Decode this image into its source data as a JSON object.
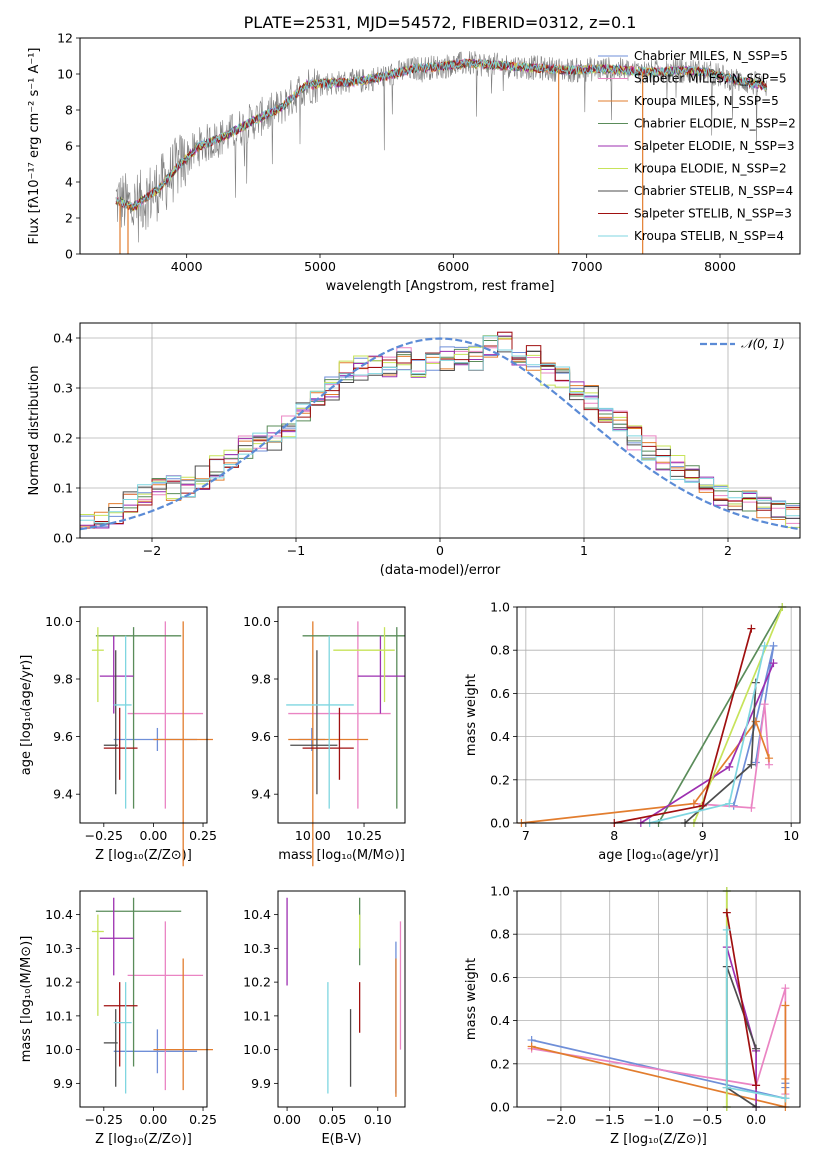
{
  "figure_title": "PLATE=2531, MJD=54572, FIBERID=0312, z=0.1",
  "colors": {
    "Chabrier MILES": "#6f8fd8",
    "Salpeter MILES": "#ea84c3",
    "Kroupa MILES": "#e27d2e",
    "Chabrier ELODIE": "#5a8c5a",
    "Salpeter ELODIE": "#9c2fb0",
    "Kroupa ELODIE": "#c7e35a",
    "Chabrier STELIB": "#4d4d4d",
    "Salpeter STELIB": "#a01010",
    "Kroupa STELIB": "#7fd6e0",
    "data": "#808080",
    "gaussian": "#5b8bd6",
    "grid": "#b0b0b0"
  },
  "chart_data": [
    {
      "type": "line",
      "id": "spectrum",
      "xlabel": "wavelength [Angstrom, rest frame]",
      "ylabel": "Flux [fλ10⁻¹⁷ erg cm⁻² s⁻¹ A⁻¹]",
      "xlim": [
        3200,
        8600
      ],
      "ylim": [
        0,
        12
      ],
      "x_ticks": [
        "4000",
        "5000",
        "6000",
        "7000",
        "8000"
      ],
      "y_ticks": [
        "0",
        "2",
        "4",
        "6",
        "8",
        "10",
        "12"
      ],
      "grid": false,
      "legend_position": "top-right",
      "legend": [
        "Chabrier MILES, N_SSP=5",
        "Salpeter MILES, N_SSP=5",
        "Kroupa MILES, N_SSP=5",
        "Chabrier ELODIE, N_SSP=2",
        "Salpeter ELODIE, N_SSP=3",
        "Kroupa ELODIE, N_SSP=2",
        "Chabrier STELIB, N_SSP=4",
        "Salpeter STELIB, N_SSP=3",
        "Kroupa STELIB, N_SSP=4"
      ],
      "continuum": {
        "x": [
          3470,
          3600,
          3800,
          3950,
          4100,
          4300,
          4500,
          4700,
          4900,
          5100,
          5300,
          5500,
          5700,
          5900,
          6100,
          6300,
          6500,
          6700,
          6900,
          7100,
          7300,
          7500,
          7700,
          7900,
          8100,
          8300,
          8350
        ],
        "y": [
          3.0,
          2.6,
          3.7,
          5.0,
          6.0,
          6.6,
          7.4,
          8.1,
          9.4,
          9.5,
          9.6,
          9.9,
          10.3,
          10.4,
          10.6,
          10.5,
          10.4,
          10.3,
          10.2,
          10.3,
          10.2,
          10.1,
          10.2,
          10.1,
          9.7,
          9.4,
          9.3
        ]
      },
      "spikes": [
        {
          "x": 3500,
          "y": 0,
          "series": "Kroupa MILES"
        },
        {
          "x": 3560,
          "y": 0,
          "series": "Kroupa MILES"
        },
        {
          "x": 6790,
          "y": 0,
          "series": "Kroupa MILES"
        },
        {
          "x": 7420,
          "y": 0,
          "series": "Kroupa MILES"
        }
      ]
    },
    {
      "type": "line",
      "id": "residuals",
      "xlabel": "(data-model)/error",
      "ylabel": "Normed distribution",
      "xlim": [
        -2.5,
        2.5
      ],
      "ylim": [
        0,
        0.43
      ],
      "x_ticks": [
        "−2",
        "−1",
        "0",
        "1",
        "2"
      ],
      "y_ticks": [
        "0.0",
        "0.1",
        "0.2",
        "0.3",
        "0.4"
      ],
      "grid": true,
      "legend_position": "top-right",
      "legend": [
        "𝒩(0, 1)"
      ],
      "bins": [
        -2.5,
        -2.4,
        -2.3,
        -2.2,
        -2.1,
        -2.0,
        -1.9,
        -1.8,
        -1.7,
        -1.6,
        -1.5,
        -1.4,
        -1.3,
        -1.2,
        -1.1,
        -1.0,
        -0.9,
        -0.8,
        -0.7,
        -0.6,
        -0.5,
        -0.4,
        -0.3,
        -0.2,
        -0.1,
        0.0,
        0.1,
        0.2,
        0.3,
        0.4,
        0.5,
        0.6,
        0.7,
        0.8,
        0.9,
        1.0,
        1.1,
        1.2,
        1.3,
        1.4,
        1.5,
        1.6,
        1.7,
        1.8,
        1.9,
        2.0,
        2.1,
        2.2,
        2.3,
        2.4,
        2.5
      ],
      "histogram_base": [
        0.03,
        0.03,
        0.05,
        0.07,
        0.085,
        0.095,
        0.1,
        0.105,
        0.12,
        0.14,
        0.16,
        0.18,
        0.195,
        0.2,
        0.22,
        0.25,
        0.27,
        0.3,
        0.33,
        0.34,
        0.35,
        0.34,
        0.36,
        0.34,
        0.35,
        0.36,
        0.37,
        0.36,
        0.38,
        0.39,
        0.37,
        0.36,
        0.33,
        0.32,
        0.3,
        0.28,
        0.25,
        0.23,
        0.2,
        0.18,
        0.16,
        0.14,
        0.12,
        0.1,
        0.085,
        0.08,
        0.07,
        0.06,
        0.05,
        0.045
      ],
      "gaussian": {
        "mu": 0,
        "sigma": 1
      }
    },
    {
      "type": "scatter",
      "id": "age-Z",
      "xlabel": "Z [log₁₀(Z/Z⊙)]",
      "ylabel": "age  [log₁₀(age/yr)]",
      "xlim": [
        -0.37,
        0.27
      ],
      "ylim": [
        9.3,
        10.05
      ],
      "x_ticks": [
        "−0.25",
        "0.00",
        "0.25"
      ],
      "y_ticks": [
        "9.4",
        "9.6",
        "9.8",
        "10.0"
      ],
      "grid": false
    },
    {
      "type": "scatter",
      "id": "age-mass",
      "xlabel": "mass [log₁₀(M/M⊙)]",
      "ylabel": "",
      "xlim": [
        9.83,
        10.45
      ],
      "ylim": [
        9.3,
        10.05
      ],
      "x_ticks": [
        "10.00",
        "10.25"
      ],
      "y_ticks": [
        "9.4",
        "9.6",
        "9.8",
        "10.0"
      ],
      "grid": false
    },
    {
      "type": "line",
      "id": "massweight-age",
      "xlabel": "age  [log₁₀(age/yr)]",
      "ylabel": "mass weight",
      "xlim": [
        6.9,
        10.1
      ],
      "ylim": [
        0,
        1.0
      ],
      "x_ticks": [
        "7",
        "8",
        "9",
        "10"
      ],
      "y_ticks": [
        "0.0",
        "0.2",
        "0.4",
        "0.6",
        "0.8",
        "1.0"
      ],
      "grid": true
    },
    {
      "type": "scatter",
      "id": "mass-Z",
      "xlabel": "Z [log₁₀(Z/Z⊙)]",
      "ylabel": "mass [log₁₀(M/M⊙)]",
      "xlim": [
        -0.37,
        0.27
      ],
      "ylim": [
        9.83,
        10.47
      ],
      "x_ticks": [
        "−0.25",
        "0.00",
        "0.25"
      ],
      "y_ticks": [
        "9.9",
        "10.0",
        "10.1",
        "10.2",
        "10.3",
        "10.4"
      ],
      "grid": false
    },
    {
      "type": "scatter",
      "id": "mass-EBV",
      "xlabel": "E(B-V)",
      "ylabel": "",
      "xlim": [
        -0.01,
        0.13
      ],
      "ylim": [
        9.83,
        10.47
      ],
      "x_ticks": [
        "0.00",
        "0.05",
        "0.10"
      ],
      "y_ticks": [
        "9.9",
        "10.0",
        "10.1",
        "10.2",
        "10.3",
        "10.4"
      ],
      "grid": false
    },
    {
      "type": "line",
      "id": "massweight-Z",
      "xlabel": "Z [log₁₀(Z/Z⊙)]",
      "ylabel": "mass weight",
      "xlim": [
        -2.45,
        0.45
      ],
      "ylim": [
        0,
        1.0
      ],
      "x_ticks": [
        "−2.0",
        "−1.5",
        "−1.0",
        "−0.5",
        "0.0"
      ],
      "y_ticks": [
        "0.0",
        "0.2",
        "0.4",
        "0.6",
        "0.8",
        "1.0"
      ],
      "grid": true
    }
  ],
  "fits": [
    {
      "name": "Chabrier MILES",
      "age": [
        9.59,
        9.55,
        9.63
      ],
      "Z": [
        0.02,
        -0.2,
        0.22
      ],
      "mass": [
        9.995,
        9.93,
        10.06
      ],
      "ebv": [
        0.12,
        9.87,
        10.32
      ],
      "age_sfh": [
        9.35,
        9.6,
        9.8,
        9.6
      ],
      "age_w": [
        0.08,
        0.47,
        0.82,
        0.28
      ],
      "Z_sfh": [
        -2.3,
        0.3,
        0.3,
        0.3
      ],
      "Z_w": [
        0.31,
        0.04,
        0.11,
        0.09
      ]
    },
    {
      "name": "Salpeter MILES",
      "age": [
        9.68,
        9.35,
        10.0
      ],
      "Z": [
        0.06,
        -0.13,
        0.25
      ],
      "mass": [
        10.22,
        9.88,
        10.38
      ],
      "ebv": [
        0.125,
        10.0,
        10.38
      ],
      "age_sfh": [
        8.9,
        9.55,
        9.7,
        9.75
      ],
      "age_w": [
        0.09,
        0.07,
        0.55,
        0.27
      ],
      "Z_sfh": [
        -2.3,
        0.0,
        0.3,
        0.3
      ],
      "Z_w": [
        0.27,
        0.1,
        0.55,
        0.06
      ]
    },
    {
      "name": "Kroupa MILES",
      "age": [
        9.59,
        9.15,
        10.0
      ],
      "Z": [
        0.15,
        0.0,
        0.3
      ],
      "mass": [
        10.0,
        9.88,
        10.27
      ],
      "ebv": [
        0.12,
        9.86,
        10.27
      ],
      "age_sfh": [
        6.95,
        8.9,
        9.6,
        9.75
      ],
      "age_w": [
        0.0,
        0.09,
        0.47,
        0.3
      ],
      "Z_sfh": [
        -2.3,
        0.3,
        0.3,
        0.3
      ],
      "Z_w": [
        0.28,
        0.0,
        0.47,
        0.13
      ]
    },
    {
      "name": "Chabrier ELODIE",
      "age": [
        9.95,
        9.35,
        9.98
      ],
      "Z": [
        -0.1,
        -0.29,
        0.14
      ],
      "mass": [
        10.41,
        9.95,
        10.45
      ],
      "ebv": [
        0.08,
        10.25,
        10.45
      ],
      "age_sfh": [
        8.5,
        9.9
      ],
      "age_w": [
        0.0,
        1.0
      ],
      "Z_sfh": [
        -0.3,
        -0.3
      ],
      "Z_w": [
        0.0,
        1.0
      ]
    },
    {
      "name": "Salpeter ELODIE",
      "age": [
        9.81,
        9.68,
        9.95
      ],
      "Z": [
        -0.2,
        -0.27,
        -0.1
      ],
      "mass": [
        10.33,
        10.22,
        10.45
      ],
      "ebv": [
        0.0,
        10.19,
        10.45
      ],
      "age_sfh": [
        8.3,
        9.3,
        9.8
      ],
      "age_w": [
        0.0,
        0.26,
        0.74
      ],
      "Z_sfh": [
        0.0,
        0.0,
        -0.3
      ],
      "Z_w": [
        0.0,
        0.26,
        0.74
      ]
    },
    {
      "name": "Kroupa ELODIE",
      "age": [
        9.9,
        9.72,
        9.98
      ],
      "Z": [
        -0.28,
        -0.31,
        -0.25
      ],
      "mass": [
        10.35,
        10.1,
        10.4
      ],
      "ebv": [
        0.08,
        10.3,
        10.4
      ],
      "age_sfh": [
        8.9,
        9.9
      ],
      "age_w": [
        0.0,
        1.0
      ],
      "Z_sfh": [
        -0.3,
        -0.3
      ],
      "Z_w": [
        0.0,
        1.0
      ]
    },
    {
      "name": "Chabrier STELIB",
      "age": [
        9.57,
        9.4,
        9.9
      ],
      "Z": [
        -0.19,
        -0.25,
        -0.18
      ],
      "mass": [
        10.02,
        9.89,
        10.12
      ],
      "ebv": [
        0.07,
        9.89,
        10.12
      ],
      "age_sfh": [
        8.8,
        9.55,
        9.6
      ],
      "age_w": [
        0.0,
        0.27,
        0.65
      ],
      "Z_sfh": [
        0.0,
        -0.3,
        -0.3,
        0.0
      ],
      "Z_w": [
        0.0,
        0.09,
        0.65,
        0.27
      ]
    },
    {
      "name": "Salpeter STELIB",
      "age": [
        9.56,
        9.45,
        9.7
      ],
      "Z": [
        -0.17,
        -0.25,
        -0.08
      ],
      "mass": [
        10.13,
        9.95,
        10.2
      ],
      "ebv": [
        0.08,
        10.05,
        10.2
      ],
      "age_sfh": [
        8.0,
        9.0,
        9.55
      ],
      "age_w": [
        0.0,
        0.08,
        0.9
      ],
      "Z_sfh": [
        0.0,
        -0.3
      ],
      "Z_w": [
        0.1,
        0.9
      ]
    },
    {
      "name": "Kroupa STELIB",
      "age": [
        9.71,
        9.35,
        9.95
      ],
      "Z": [
        -0.14,
        -0.2,
        -0.11
      ],
      "mass": [
        10.08,
        9.87,
        10.2
      ],
      "ebv": [
        0.045,
        9.87,
        10.2
      ],
      "age_sfh": [
        8.4,
        9.3,
        9.7
      ],
      "age_w": [
        0.0,
        0.09,
        0.82
      ],
      "Z_sfh": [
        0.3,
        -0.3,
        -0.3
      ],
      "Z_w": [
        0.04,
        0.09,
        0.82
      ]
    }
  ]
}
